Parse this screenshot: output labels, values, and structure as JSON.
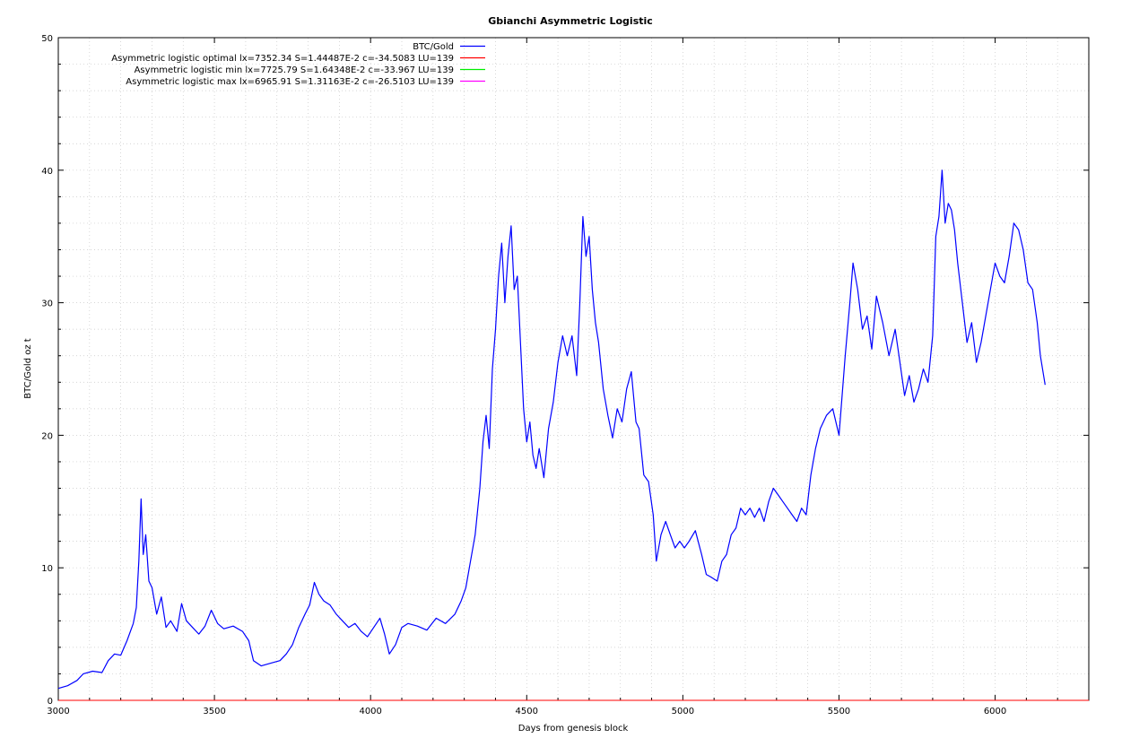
{
  "chart_data": {
    "type": "line",
    "title": "Gbianchi Asymmetric Logistic",
    "xlabel": "Days from genesis block",
    "ylabel": "BTC/Gold oz t",
    "xlim": [
      3000,
      6300
    ],
    "ylim": [
      0,
      50
    ],
    "x_ticks": [
      3000,
      3500,
      4000,
      4500,
      5000,
      5500,
      6000
    ],
    "y_ticks": [
      0,
      10,
      20,
      30,
      40,
      50
    ],
    "grid": true,
    "legend_position": "top-center",
    "series": [
      {
        "name": "BTC/Gold",
        "color": "#0000ff",
        "points": [
          [
            3000,
            0.9
          ],
          [
            3030,
            1.1
          ],
          [
            3060,
            1.5
          ],
          [
            3080,
            2.0
          ],
          [
            3110,
            2.2
          ],
          [
            3140,
            2.1
          ],
          [
            3160,
            3.0
          ],
          [
            3180,
            3.5
          ],
          [
            3200,
            3.4
          ],
          [
            3220,
            4.5
          ],
          [
            3240,
            5.8
          ],
          [
            3250,
            7.0
          ],
          [
            3258,
            10.5
          ],
          [
            3265,
            15.2
          ],
          [
            3272,
            11.0
          ],
          [
            3280,
            12.5
          ],
          [
            3290,
            9.0
          ],
          [
            3300,
            8.5
          ],
          [
            3315,
            6.5
          ],
          [
            3330,
            7.8
          ],
          [
            3345,
            5.5
          ],
          [
            3360,
            6.0
          ],
          [
            3380,
            5.2
          ],
          [
            3395,
            7.3
          ],
          [
            3410,
            6.0
          ],
          [
            3430,
            5.5
          ],
          [
            3450,
            5.0
          ],
          [
            3470,
            5.6
          ],
          [
            3490,
            6.8
          ],
          [
            3510,
            5.8
          ],
          [
            3530,
            5.4
          ],
          [
            3560,
            5.6
          ],
          [
            3590,
            5.2
          ],
          [
            3610,
            4.5
          ],
          [
            3625,
            3.0
          ],
          [
            3650,
            2.6
          ],
          [
            3680,
            2.8
          ],
          [
            3710,
            3.0
          ],
          [
            3730,
            3.5
          ],
          [
            3750,
            4.2
          ],
          [
            3770,
            5.5
          ],
          [
            3790,
            6.5
          ],
          [
            3805,
            7.2
          ],
          [
            3820,
            8.9
          ],
          [
            3835,
            8.0
          ],
          [
            3850,
            7.5
          ],
          [
            3870,
            7.2
          ],
          [
            3890,
            6.5
          ],
          [
            3910,
            6.0
          ],
          [
            3930,
            5.5
          ],
          [
            3950,
            5.8
          ],
          [
            3970,
            5.2
          ],
          [
            3990,
            4.8
          ],
          [
            4010,
            5.5
          ],
          [
            4030,
            6.2
          ],
          [
            4045,
            5.0
          ],
          [
            4060,
            3.5
          ],
          [
            4080,
            4.2
          ],
          [
            4100,
            5.5
          ],
          [
            4120,
            5.8
          ],
          [
            4150,
            5.6
          ],
          [
            4180,
            5.3
          ],
          [
            4210,
            6.2
          ],
          [
            4240,
            5.8
          ],
          [
            4270,
            6.5
          ],
          [
            4290,
            7.5
          ],
          [
            4305,
            8.5
          ],
          [
            4320,
            10.5
          ],
          [
            4335,
            12.5
          ],
          [
            4350,
            16.0
          ],
          [
            4360,
            19.5
          ],
          [
            4370,
            21.5
          ],
          [
            4380,
            19.0
          ],
          [
            4390,
            25.0
          ],
          [
            4400,
            28.0
          ],
          [
            4410,
            32.0
          ],
          [
            4420,
            34.5
          ],
          [
            4430,
            30.0
          ],
          [
            4440,
            33.5
          ],
          [
            4450,
            35.8
          ],
          [
            4460,
            31.0
          ],
          [
            4470,
            32.0
          ],
          [
            4480,
            27.0
          ],
          [
            4490,
            22.0
          ],
          [
            4500,
            19.5
          ],
          [
            4510,
            21.0
          ],
          [
            4520,
            18.5
          ],
          [
            4530,
            17.5
          ],
          [
            4540,
            19.0
          ],
          [
            4555,
            16.8
          ],
          [
            4570,
            20.5
          ],
          [
            4585,
            22.5
          ],
          [
            4600,
            25.5
          ],
          [
            4615,
            27.5
          ],
          [
            4630,
            26.0
          ],
          [
            4645,
            27.5
          ],
          [
            4660,
            24.5
          ],
          [
            4670,
            30.0
          ],
          [
            4680,
            36.5
          ],
          [
            4690,
            33.5
          ],
          [
            4700,
            35.0
          ],
          [
            4710,
            31.0
          ],
          [
            4720,
            28.5
          ],
          [
            4730,
            27.0
          ],
          [
            4745,
            23.5
          ],
          [
            4760,
            21.5
          ],
          [
            4775,
            19.8
          ],
          [
            4790,
            22.0
          ],
          [
            4805,
            21.0
          ],
          [
            4820,
            23.5
          ],
          [
            4835,
            24.8
          ],
          [
            4850,
            21.0
          ],
          [
            4860,
            20.5
          ],
          [
            4875,
            17.0
          ],
          [
            4890,
            16.5
          ],
          [
            4905,
            14.0
          ],
          [
            4915,
            10.5
          ],
          [
            4930,
            12.5
          ],
          [
            4945,
            13.5
          ],
          [
            4960,
            12.5
          ],
          [
            4975,
            11.5
          ],
          [
            4990,
            12.0
          ],
          [
            5005,
            11.5
          ],
          [
            5020,
            12.0
          ],
          [
            5040,
            12.8
          ],
          [
            5060,
            11.0
          ],
          [
            5075,
            9.5
          ],
          [
            5090,
            9.3
          ],
          [
            5110,
            9.0
          ],
          [
            5125,
            10.5
          ],
          [
            5140,
            11.0
          ],
          [
            5155,
            12.5
          ],
          [
            5170,
            13.0
          ],
          [
            5185,
            14.5
          ],
          [
            5200,
            14.0
          ],
          [
            5215,
            14.5
          ],
          [
            5230,
            13.8
          ],
          [
            5245,
            14.5
          ],
          [
            5260,
            13.5
          ],
          [
            5275,
            15.0
          ],
          [
            5290,
            16.0
          ],
          [
            5305,
            15.5
          ],
          [
            5320,
            15.0
          ],
          [
            5335,
            14.5
          ],
          [
            5350,
            14.0
          ],
          [
            5365,
            13.5
          ],
          [
            5380,
            14.5
          ],
          [
            5395,
            14.0
          ],
          [
            5410,
            17.0
          ],
          [
            5425,
            19.0
          ],
          [
            5440,
            20.5
          ],
          [
            5460,
            21.5
          ],
          [
            5480,
            22.0
          ],
          [
            5500,
            20.0
          ],
          [
            5520,
            26.0
          ],
          [
            5535,
            30.0
          ],
          [
            5545,
            33.0
          ],
          [
            5560,
            31.0
          ],
          [
            5575,
            28.0
          ],
          [
            5590,
            29.0
          ],
          [
            5605,
            26.5
          ],
          [
            5620,
            30.5
          ],
          [
            5640,
            28.5
          ],
          [
            5660,
            26.0
          ],
          [
            5680,
            28.0
          ],
          [
            5695,
            25.5
          ],
          [
            5710,
            23.0
          ],
          [
            5725,
            24.5
          ],
          [
            5740,
            22.5
          ],
          [
            5755,
            23.5
          ],
          [
            5770,
            25.0
          ],
          [
            5785,
            24.0
          ],
          [
            5800,
            27.5
          ],
          [
            5810,
            35.0
          ],
          [
            5820,
            36.5
          ],
          [
            5830,
            40.0
          ],
          [
            5840,
            36.0
          ],
          [
            5850,
            37.5
          ],
          [
            5860,
            37.0
          ],
          [
            5870,
            35.5
          ],
          [
            5880,
            33.0
          ],
          [
            5895,
            30.0
          ],
          [
            5910,
            27.0
          ],
          [
            5925,
            28.5
          ],
          [
            5940,
            25.5
          ],
          [
            5955,
            27.0
          ],
          [
            5970,
            29.0
          ],
          [
            5985,
            31.0
          ],
          [
            6000,
            33.0
          ],
          [
            6015,
            32.0
          ],
          [
            6030,
            31.5
          ],
          [
            6045,
            33.5
          ],
          [
            6060,
            36.0
          ],
          [
            6075,
            35.5
          ],
          [
            6090,
            34.0
          ],
          [
            6105,
            31.5
          ],
          [
            6120,
            31.0
          ],
          [
            6135,
            28.5
          ],
          [
            6145,
            26.0
          ],
          [
            6160,
            23.8
          ]
        ]
      },
      {
        "name": "Asymmetric logistic optimal lx=7352.34 S=1.44487E-2 c=-34.5083 LU=139",
        "color": "#ff0000",
        "Ix": 7352.34,
        "S": 0.0144487,
        "c": -34.5083,
        "LU": 139
      },
      {
        "name": "Asymmetric logistic min lx=7725.79 S=1.64348E-2 c=-33.967 LU=139",
        "color": "#00ee00",
        "Ix": 7725.79,
        "S": 0.0164348,
        "c": -33.967,
        "LU": 139
      },
      {
        "name": "Asymmetric logistic max lx=6965.91 S=1.31163E-2 c=-26.5103 LU=139",
        "color": "#ff00ff",
        "Ix": 6965.91,
        "S": 0.0131163,
        "c": -26.5103,
        "LU": 139
      }
    ]
  }
}
